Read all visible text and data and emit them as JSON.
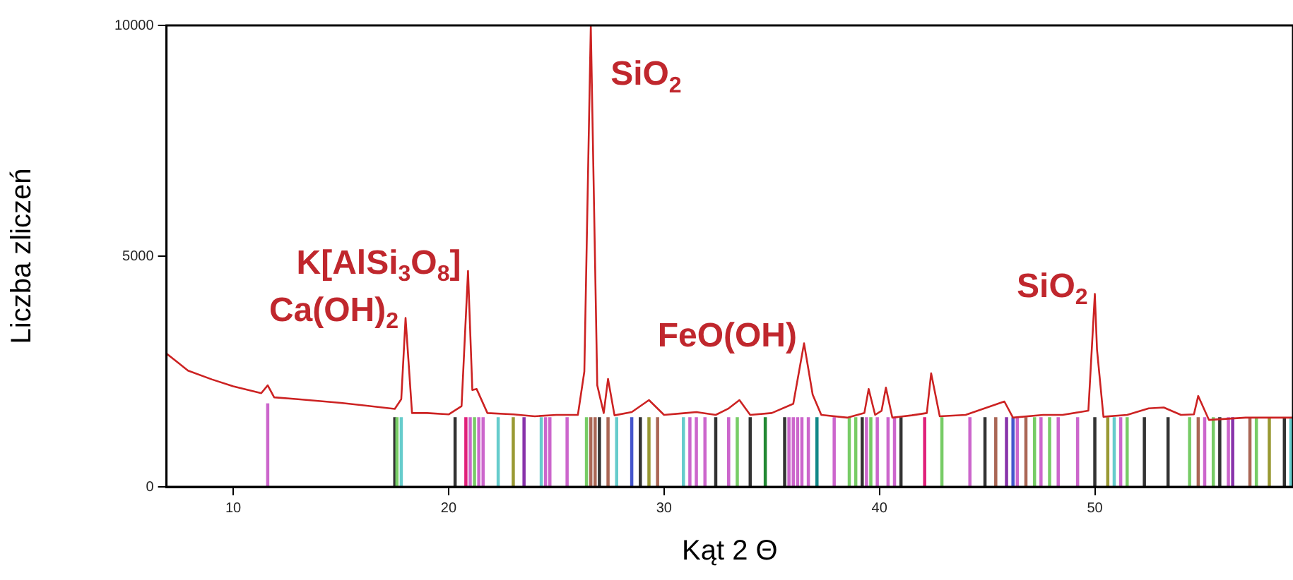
{
  "chart_data": {
    "type": "line",
    "xlabel": "Kąt 2 Θ",
    "ylabel": "Liczba zliczeń",
    "xlim": [
      6.9,
      59.2
    ],
    "xticks": [
      10,
      20,
      30,
      40,
      50
    ],
    "ylim": [
      0,
      10000
    ],
    "yticks": [
      0,
      5000,
      10000
    ],
    "marker": "none",
    "line_style": "solid",
    "annotations": [
      {
        "text": "Ca(OH)$_{2}$",
        "x": 18.0,
        "y": 3660
      },
      {
        "text": "K[AlSi$_{3}$O$_{8}$]",
        "x": 20.9,
        "y": 4680
      },
      {
        "text": "SiO$_{2}$",
        "x": 26.6,
        "y": 10000
      },
      {
        "text": "FeO(OH)",
        "x": 36.5,
        "y": 3110
      },
      {
        "text": "SiO$_{2}$",
        "x": 50.0,
        "y": 4180
      }
    ],
    "series": [
      {
        "color": "#cc2222",
        "x": [
          6.9,
          7.9,
          9,
          10,
          11.3,
          11.6,
          11.9,
          13,
          15,
          17.5,
          17.8,
          18.0,
          18.3,
          19,
          20,
          20.6,
          20.9,
          21.1,
          21.3,
          21.8,
          23,
          24,
          25,
          26.0,
          26.3,
          26.6,
          26.9,
          27.2,
          27.4,
          27.7,
          28.5,
          29.3,
          30,
          31,
          31.5,
          32.4,
          33,
          33.5,
          34,
          35,
          36.0,
          36.5,
          36.9,
          37.3,
          38.5,
          39.3,
          39.5,
          39.8,
          40.1,
          40.3,
          40.6,
          41.5,
          42.2,
          42.4,
          42.8,
          44,
          45.8,
          46.2,
          47.6,
          48.5,
          49.7,
          50.0,
          50.1,
          50.4,
          51.5,
          52.5,
          53.2,
          54,
          54.6,
          54.8,
          55.3,
          57,
          59.2
        ],
        "values": [
          2890,
          2520,
          2330,
          2180,
          2030,
          2200,
          1940,
          1900,
          1820,
          1690,
          1900,
          3660,
          1600,
          1600,
          1570,
          1750,
          4680,
          2100,
          2120,
          1600,
          1570,
          1530,
          1560,
          1560,
          2500,
          10000,
          2200,
          1600,
          2340,
          1550,
          1620,
          1880,
          1560,
          1600,
          1620,
          1560,
          1700,
          1880,
          1560,
          1600,
          1800,
          3110,
          2000,
          1560,
          1500,
          1600,
          2120,
          1560,
          1650,
          2150,
          1500,
          1550,
          1600,
          2460,
          1530,
          1560,
          1850,
          1500,
          1560,
          1560,
          1650,
          4180,
          2980,
          1520,
          1560,
          1700,
          1720,
          1560,
          1570,
          1970,
          1450,
          1500,
          1500
        ]
      },
      {
        "type": "bar",
        "x": [
          11.6,
          17.5,
          17.6,
          17.8,
          20.3,
          20.8,
          21.0,
          21.2,
          21.4,
          21.6,
          22.3,
          23.0,
          23.5,
          24.3,
          24.5,
          24.7,
          25.5,
          26.4,
          26.6,
          26.8,
          27.0,
          27.4,
          27.8,
          28.5,
          28.9,
          29.3,
          29.7,
          30.9,
          31.2,
          31.5,
          31.9,
          32.4,
          33.0,
          33.4,
          34.0,
          34.7,
          35.6,
          35.8,
          36.0,
          36.2,
          36.4,
          36.7,
          37.1,
          37.9,
          38.6,
          38.9,
          39.2,
          39.4,
          39.6,
          39.9,
          40.4,
          40.7,
          41.0,
          42.1,
          42.9,
          44.2,
          44.9,
          45.4,
          45.9,
          46.2,
          46.4,
          46.8,
          47.2,
          47.5,
          47.9,
          48.3,
          49.2,
          50.0,
          50.6,
          50.9,
          51.2,
          51.5,
          52.3,
          53.4,
          54.4,
          54.8,
          55.1,
          55.5,
          55.8,
          56.2,
          56.4,
          57.2,
          57.5,
          58.1,
          58.8,
          59.1
        ],
        "values": [
          1800,
          1500,
          1500,
          1500,
          1500,
          1500,
          1500,
          1500,
          1500,
          1500,
          1500,
          1500,
          1500,
          1500,
          1500,
          1500,
          1500,
          1500,
          1500,
          1500,
          1500,
          1500,
          1500,
          1500,
          1500,
          1500,
          1500,
          1500,
          1500,
          1500,
          1500,
          1500,
          1500,
          1500,
          1500,
          1500,
          1500,
          1500,
          1500,
          1500,
          1500,
          1500,
          1500,
          1500,
          1500,
          1500,
          1500,
          1500,
          1500,
          1500,
          1500,
          1500,
          1500,
          1500,
          1500,
          1500,
          1500,
          1500,
          1500,
          1500,
          1500,
          1500,
          1500,
          1500,
          1500,
          1500,
          1500,
          1500,
          1500,
          1500,
          1500,
          1500,
          1500,
          1500,
          1500,
          1500,
          1500,
          1500,
          1500,
          1500,
          1500,
          1500,
          1500,
          1500,
          1500,
          1500
        ],
        "colors": [
          "#cc66cc",
          "#333333",
          "#77cc66",
          "#66cccc",
          "#333333",
          "#e0207a",
          "#cc66cc",
          "#77cc66",
          "#cc66cc",
          "#cc66cc",
          "#66cccc",
          "#999933",
          "#8833aa",
          "#66cccc",
          "#cc66cc",
          "#cc66cc",
          "#cc66cc",
          "#77cc66",
          "#aa6655",
          "#aa6655",
          "#333333",
          "#aa6655",
          "#66cccc",
          "#4455cc",
          "#333333",
          "#999933",
          "#aa6655",
          "#66cccc",
          "#cc66cc",
          "#cc66cc",
          "#cc66cc",
          "#333333",
          "#cc66cc",
          "#77cc66",
          "#333333",
          "#228833",
          "#333333",
          "#cc66cc",
          "#cc66cc",
          "#cc66cc",
          "#cc66cc",
          "#cc66cc",
          "#118888",
          "#cc66cc",
          "#77cc66",
          "#77cc66",
          "#333333",
          "#cc66cc",
          "#77cc66",
          "#cc66cc",
          "#cc66cc",
          "#cc66cc",
          "#333333",
          "#e0207a",
          "#77cc66",
          "#cc66cc",
          "#333333",
          "#aa6655",
          "#8833aa",
          "#4455cc",
          "#cc66cc",
          "#aa6655",
          "#77cc66",
          "#cc66cc",
          "#77cc66",
          "#cc66cc",
          "#cc66cc",
          "#333333",
          "#999933",
          "#66cccc",
          "#cc66cc",
          "#77cc66",
          "#333333",
          "#333333",
          "#77cc66",
          "#aa6655",
          "#cc66cc",
          "#77cc66",
          "#333333",
          "#cc66cc",
          "#8833aa",
          "#aa6655",
          "#77cc66",
          "#999933",
          "#333333",
          "#66cccc"
        ]
      }
    ]
  }
}
